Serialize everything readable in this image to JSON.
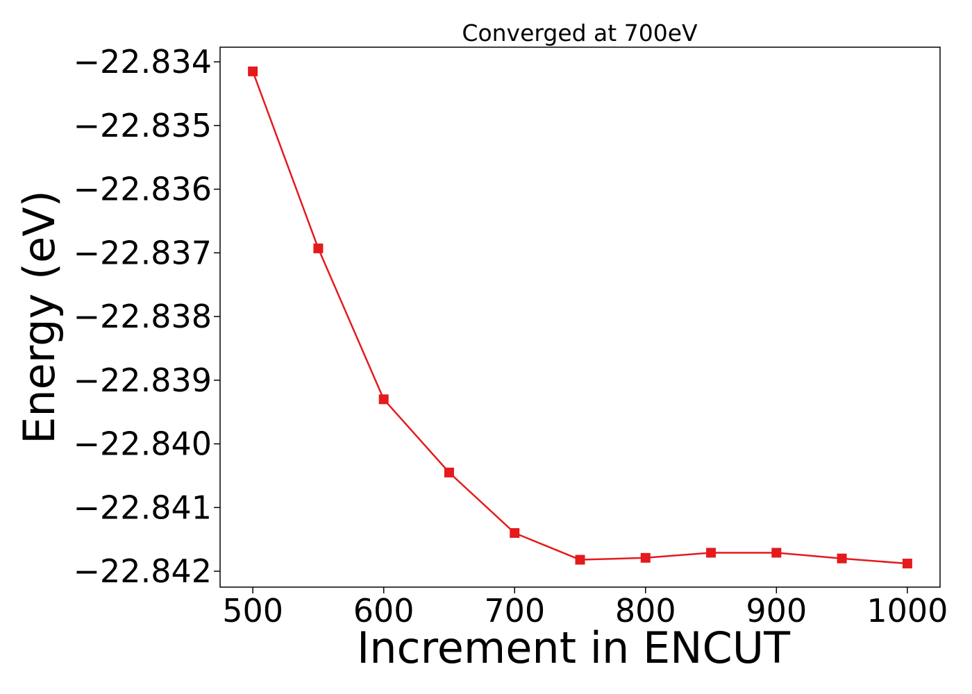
{
  "chart_data": {
    "type": "line",
    "title": "Converged at 700eV",
    "xlabel": "Increment in ENCUT",
    "ylabel": "Energy (eV)",
    "x": [
      500,
      550,
      600,
      650,
      700,
      750,
      800,
      850,
      900,
      950,
      1000
    ],
    "series": [
      {
        "values": [
          -22.83415,
          -22.83693,
          -22.8393,
          -22.84045,
          -22.8414,
          -22.84182,
          -22.84179,
          -22.84171,
          -22.84171,
          -22.8418,
          -22.84188
        ],
        "color": "#e41a1c",
        "marker": "square"
      }
    ],
    "xlim": [
      475,
      1025
    ],
    "ylim": [
      -22.84225,
      -22.83377
    ],
    "xticks": [
      500,
      600,
      700,
      800,
      900,
      1000
    ],
    "xtick_labels": [
      "500",
      "600",
      "700",
      "800",
      "900",
      "1000"
    ],
    "yticks": [
      -22.834,
      -22.835,
      -22.836,
      -22.837,
      -22.838,
      -22.839,
      -22.84,
      -22.841,
      -22.842
    ],
    "ytick_labels": [
      "−22.834",
      "−22.835",
      "−22.836",
      "−22.837",
      "−22.838",
      "−22.839",
      "−22.840",
      "−22.841",
      "−22.842"
    ],
    "grid": false,
    "legend": "none"
  }
}
